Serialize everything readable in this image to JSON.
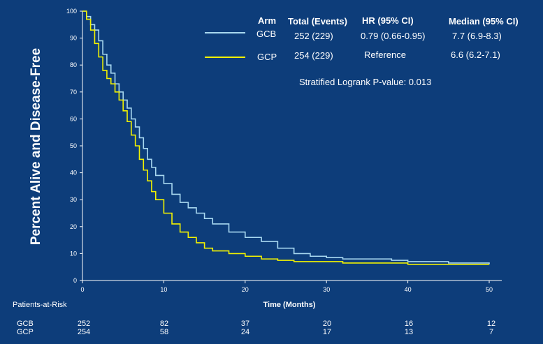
{
  "chart_data": {
    "type": "line",
    "ylabel": "Percent Alive and Disease-Free",
    "xlabel": "Time (Months)",
    "xlim": [
      0,
      50
    ],
    "ylim": [
      0,
      100
    ],
    "x_ticks": [
      0,
      10,
      20,
      30,
      40,
      50
    ],
    "y_ticks": [
      0,
      10,
      20,
      30,
      40,
      50,
      60,
      70,
      80,
      90,
      100
    ],
    "grid": false,
    "legend_placement": "top-right",
    "legend": {
      "headers": {
        "arm": "Arm",
        "total": "Total (Events)",
        "hr": "HR (95%  CI)",
        "median": "Median (95%  CI)"
      },
      "rows": [
        {
          "arm": "GCB",
          "total": "252 (229)",
          "hr": "0.79 (0.66-0.95)",
          "median": "7.7 (6.9-8.3)",
          "color": "#a8d8f0"
        },
        {
          "arm": "GCP",
          "total": "254 (229)",
          "hr": "Reference",
          "median": "6.6 (6.2-7.1)",
          "color": "#f2f200"
        }
      ]
    },
    "annotation": "Stratified Logrank P-value: 0.013",
    "series": [
      {
        "name": "GCB",
        "color": "#a8d8f0",
        "points": [
          [
            0,
            100
          ],
          [
            0.5,
            98
          ],
          [
            1,
            95
          ],
          [
            1.5,
            93
          ],
          [
            2,
            89
          ],
          [
            2.5,
            84
          ],
          [
            3,
            80
          ],
          [
            3.5,
            77
          ],
          [
            4,
            73
          ],
          [
            4.5,
            70
          ],
          [
            5,
            67
          ],
          [
            5.5,
            64
          ],
          [
            6,
            60
          ],
          [
            6.5,
            57
          ],
          [
            7,
            53
          ],
          [
            7.5,
            49
          ],
          [
            8,
            45
          ],
          [
            8.5,
            42
          ],
          [
            9,
            39
          ],
          [
            10,
            36
          ],
          [
            11,
            32
          ],
          [
            12,
            29
          ],
          [
            13,
            27
          ],
          [
            14,
            25
          ],
          [
            15,
            23
          ],
          [
            16,
            21
          ],
          [
            18,
            18
          ],
          [
            20,
            16
          ],
          [
            22,
            14.5
          ],
          [
            24,
            12
          ],
          [
            26,
            10
          ],
          [
            28,
            9
          ],
          [
            30,
            8.5
          ],
          [
            32,
            8
          ],
          [
            34,
            8
          ],
          [
            36,
            8
          ],
          [
            38,
            7.5
          ],
          [
            40,
            7
          ],
          [
            45,
            6.5
          ],
          [
            50,
            6
          ]
        ]
      },
      {
        "name": "GCP",
        "color": "#f2f200",
        "points": [
          [
            0,
            100
          ],
          [
            0.5,
            97
          ],
          [
            1,
            93
          ],
          [
            1.5,
            88
          ],
          [
            2,
            83
          ],
          [
            2.5,
            78
          ],
          [
            3,
            75
          ],
          [
            3.5,
            73
          ],
          [
            4,
            70
          ],
          [
            4.5,
            67
          ],
          [
            5,
            63
          ],
          [
            5.5,
            59
          ],
          [
            6,
            54
          ],
          [
            6.5,
            50
          ],
          [
            7,
            45
          ],
          [
            7.5,
            41
          ],
          [
            8,
            37
          ],
          [
            8.5,
            33
          ],
          [
            9,
            30
          ],
          [
            10,
            25
          ],
          [
            11,
            21
          ],
          [
            12,
            18
          ],
          [
            13,
            16
          ],
          [
            14,
            14
          ],
          [
            15,
            12
          ],
          [
            16,
            11
          ],
          [
            18,
            10
          ],
          [
            20,
            9
          ],
          [
            22,
            8
          ],
          [
            24,
            7.5
          ],
          [
            26,
            7
          ],
          [
            28,
            7
          ],
          [
            30,
            7
          ],
          [
            32,
            6.5
          ],
          [
            34,
            6.5
          ],
          [
            36,
            6.5
          ],
          [
            38,
            6.5
          ],
          [
            40,
            6
          ],
          [
            45,
            6
          ],
          [
            50,
            6
          ]
        ]
      }
    ]
  },
  "patients_at_risk": {
    "title": "Patients-at-Risk",
    "times": [
      0,
      10,
      20,
      30,
      40,
      50
    ],
    "rows": [
      {
        "name": "GCB",
        "values": [
          "252",
          "82",
          "37",
          "20",
          "16",
          "12"
        ]
      },
      {
        "name": "GCP",
        "values": [
          "254",
          "58",
          "24",
          "17",
          "13",
          "7"
        ]
      }
    ]
  }
}
